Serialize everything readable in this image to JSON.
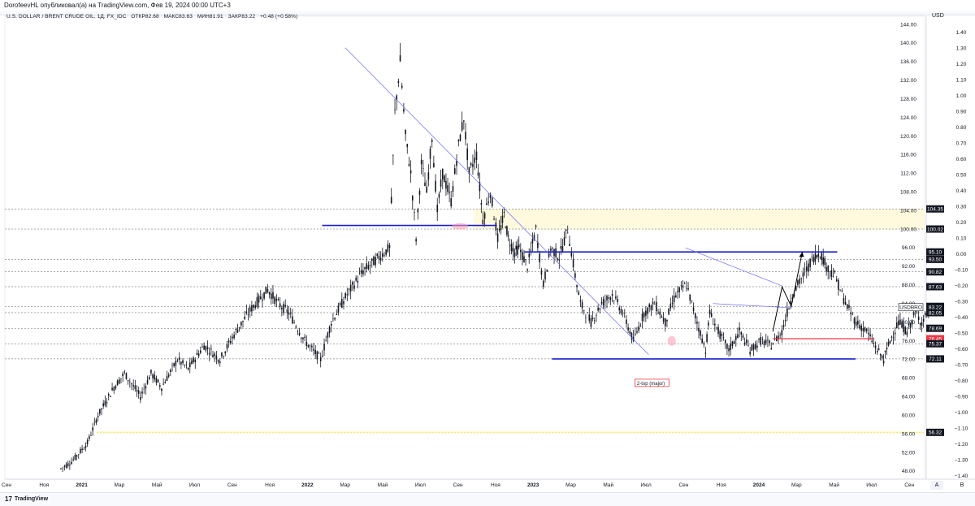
{
  "topbar": {
    "text": "DorofeevHL опубликовал(а) на TradingView.com, Фев 19, 2024 00:00 UTC+3"
  },
  "header": {
    "symbol": "U.S. DOLLAR / BRENT CRUDE OIL, 1Д, FX_IDC",
    "open": "ОТКР82.68",
    "high": "МАКС83.63",
    "low": "МИН81.91",
    "close": "ЗАКР83.22",
    "change": "+0.48 (+0.58%)"
  },
  "right_axis_unit": "USD",
  "footer": {
    "brand": "TradingView",
    "logo": "17",
    "auto_button": "A",
    "log_button": "B"
  },
  "colors": {
    "candle": "#131722",
    "trend_line": "#6b6bff",
    "level_blue": "#1a1fcc",
    "level_red": "#f23645",
    "zone_yellow": "#fff9d6",
    "label_black": "#131722",
    "label_red": "#f23645",
    "label_blue": "#2962ff",
    "arrow": "#000000"
  },
  "chart_data": {
    "type": "candlestick",
    "title": "U.S. DOLLAR / BRENT CRUDE OIL, 1Д, FX_IDC",
    "x_ticks": [
      "Сен",
      "Ноя",
      "2021",
      "Мар",
      "Май",
      "Июл",
      "Сен",
      "Ноя",
      "2022",
      "Мар",
      "Май",
      "Июл",
      "Сен",
      "Ноя",
      "2023",
      "Мар",
      "Май",
      "Июл",
      "Сен",
      "Ноя",
      "2024",
      "Мар",
      "Май",
      "Июл",
      "Сен"
    ],
    "y_ticks_price": [
      "144.00",
      "140.00",
      "136.00",
      "132.00",
      "128.00",
      "124.00",
      "120.00",
      "116.00",
      "112.00",
      "108.00",
      "104.00",
      "100.00",
      "96.00",
      "92.00",
      "88.00",
      "84.00",
      "80.00",
      "76.00",
      "72.00",
      "68.00",
      "64.00",
      "60.00",
      "56.00",
      "52.00",
      "48.00"
    ],
    "y_ticks_left_scale": [
      "1.40",
      "1.30",
      "1.20",
      "1.10",
      "1.00",
      "0.90",
      "0.80",
      "0.70",
      "0.60",
      "0.50",
      "0.40",
      "0.30",
      "0.20",
      "0.10",
      "0.00",
      "−0.10",
      "−0.20",
      "−0.30",
      "−0.40",
      "−0.50",
      "−0.60",
      "−0.70",
      "−0.80",
      "−0.90",
      "−1.00",
      "−1.10",
      "−1.20",
      "−1.30",
      "−1.40"
    ],
    "price_labels": [
      {
        "text": "104.35",
        "style": "black"
      },
      {
        "text": "100.02",
        "style": "black"
      },
      {
        "text": "95.10",
        "style": "black"
      },
      {
        "text": "93.50",
        "style": "black"
      },
      {
        "text": "90.82",
        "style": "black"
      },
      {
        "text": "87.63",
        "style": "black"
      },
      {
        "text": "83.40",
        "style": "black"
      },
      {
        "text": "83.22",
        "style": "black"
      },
      {
        "text": "82.05",
        "style": "black"
      },
      {
        "text": "78.69",
        "style": "black"
      },
      {
        "text": "76.45",
        "style": "red"
      },
      {
        "text": "75.37",
        "style": "black"
      },
      {
        "text": "72.11",
        "style": "black"
      },
      {
        "text": "56.32",
        "style": "black"
      }
    ],
    "symbol_label": "USDBRO",
    "annotation": "2-top (major)",
    "ohlc": {
      "open": 82.68,
      "high": 83.63,
      "low": 81.91,
      "close": 83.22
    },
    "price_path": [
      [
        0,
        48.5
      ],
      [
        10,
        50
      ],
      [
        25,
        54
      ],
      [
        35,
        60
      ],
      [
        50,
        66
      ],
      [
        60,
        69
      ],
      [
        75,
        64
      ],
      [
        85,
        69
      ],
      [
        95,
        66
      ],
      [
        110,
        72
      ],
      [
        120,
        70
      ],
      [
        135,
        75
      ],
      [
        150,
        72
      ],
      [
        165,
        78
      ],
      [
        180,
        83
      ],
      [
        195,
        87
      ],
      [
        205,
        84
      ],
      [
        215,
        82
      ],
      [
        230,
        76
      ],
      [
        245,
        72
      ],
      [
        255,
        80
      ],
      [
        270,
        86
      ],
      [
        285,
        91
      ],
      [
        300,
        94
      ],
      [
        310,
        96
      ],
      [
        315,
        125
      ],
      [
        320,
        136
      ],
      [
        325,
        120
      ],
      [
        330,
        112
      ],
      [
        335,
        98
      ],
      [
        340,
        114
      ],
      [
        345,
        108
      ],
      [
        350,
        120
      ],
      [
        355,
        104
      ],
      [
        360,
        112
      ],
      [
        368,
        106
      ],
      [
        375,
        118
      ],
      [
        380,
        124
      ],
      [
        385,
        112
      ],
      [
        392,
        116
      ],
      [
        398,
        102
      ],
      [
        405,
        108
      ],
      [
        412,
        98
      ],
      [
        418,
        103
      ],
      [
        422,
        98
      ],
      [
        428,
        95
      ],
      [
        432,
        96
      ],
      [
        440,
        92
      ],
      [
        448,
        100
      ],
      [
        455,
        88
      ],
      [
        462,
        96
      ],
      [
        470,
        94
      ],
      [
        478,
        100
      ],
      [
        485,
        90
      ],
      [
        490,
        84
      ],
      [
        500,
        80
      ],
      [
        510,
        84
      ],
      [
        520,
        86
      ],
      [
        530,
        82
      ],
      [
        540,
        76
      ],
      [
        550,
        82
      ],
      [
        560,
        84
      ],
      [
        570,
        80
      ],
      [
        580,
        86
      ],
      [
        590,
        88
      ],
      [
        600,
        80
      ],
      [
        608,
        74
      ],
      [
        612,
        82
      ],
      [
        620,
        78
      ],
      [
        630,
        74
      ],
      [
        640,
        78
      ],
      [
        650,
        74
      ],
      [
        660,
        76
      ],
      [
        670,
        75
      ],
      [
        680,
        78
      ],
      [
        690,
        86
      ],
      [
        700,
        90
      ],
      [
        710,
        94
      ],
      [
        716,
        95
      ],
      [
        722,
        92
      ],
      [
        730,
        90
      ],
      [
        740,
        84
      ],
      [
        750,
        80
      ],
      [
        760,
        78
      ],
      [
        770,
        74
      ],
      [
        776,
        72
      ],
      [
        782,
        76
      ],
      [
        790,
        80
      ],
      [
        798,
        78
      ],
      [
        806,
        82
      ],
      [
        812,
        80
      ],
      [
        820,
        83.2
      ]
    ],
    "levels": [
      {
        "price": 95.1,
        "style": "blue_solid",
        "from": 0.565,
        "to": 0.905
      },
      {
        "price": 72.11,
        "style": "blue_solid",
        "from": 0.595,
        "to": 0.925
      },
      {
        "price": 100.8,
        "style": "blue_solid",
        "from": 0.345,
        "to": 0.535
      },
      {
        "price": 76.45,
        "style": "red_solid",
        "from": 0.835,
        "to": 0.945
      },
      {
        "price": 56.32,
        "style": "yellow_zone",
        "from": 0.1,
        "to": 0.95
      },
      {
        "price": 104.35,
        "style": "dashed"
      },
      {
        "price": 100.02,
        "style": "dashed"
      },
      {
        "price": 93.5,
        "style": "dashed"
      },
      {
        "price": 90.82,
        "style": "dashed"
      },
      {
        "price": 87.63,
        "style": "dashed"
      },
      {
        "price": 83.4,
        "style": "dashed"
      },
      {
        "price": 82.05,
        "style": "dashed"
      },
      {
        "price": 78.69,
        "style": "dashed"
      },
      {
        "price": 75.37,
        "style": "dashed"
      },
      {
        "price": 72.11,
        "style": "dashed"
      }
    ],
    "yellow_zone_top": {
      "from_price": 100.02,
      "to_price": 104.35
    },
    "trend_lines": [
      {
        "from_bar": 0.37,
        "from_price": 139.0,
        "to_bar": 0.7,
        "to_price": 73.0
      },
      {
        "from_bar": 0.74,
        "from_price": 96.0,
        "to_bar": 0.845,
        "to_price": 87.8
      },
      {
        "from_bar": 0.77,
        "from_price": 84.0,
        "to_bar": 0.855,
        "to_price": 83.1
      }
    ],
    "projection_arrow": [
      [
        0.835,
        78.0
      ],
      [
        0.845,
        87.6
      ],
      [
        0.855,
        83.4
      ],
      [
        0.867,
        95.1
      ]
    ]
  }
}
